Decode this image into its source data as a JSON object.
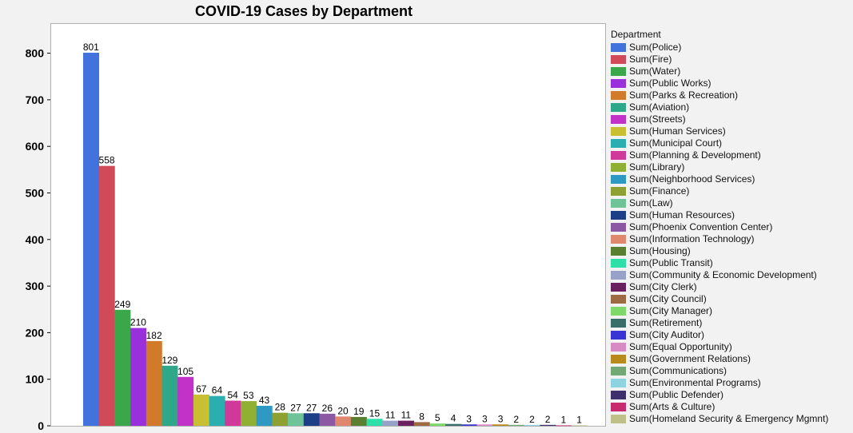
{
  "chart_data": {
    "type": "bar",
    "title": "COVID-19 Cases by Department",
    "xlabel": "",
    "ylabel": "",
    "ylim": [
      0,
      870
    ],
    "yticks": [
      0,
      100,
      200,
      300,
      400,
      500,
      600,
      700,
      800
    ],
    "legend_title": "Department",
    "legend_position": "right",
    "series": [
      {
        "name": "Sum(Police)",
        "value": 801,
        "color": "#4273dd"
      },
      {
        "name": "Sum(Fire)",
        "value": 558,
        "color": "#d04a5a"
      },
      {
        "name": "Sum(Water)",
        "value": 249,
        "color": "#3aa84a"
      },
      {
        "name": "Sum(Public Works)",
        "value": 210,
        "color": "#9a2fdc"
      },
      {
        "name": "Sum(Parks & Recreation)",
        "value": 182,
        "color": "#d17a2a"
      },
      {
        "name": "Sum(Aviation)",
        "value": 129,
        "color": "#2ea888"
      },
      {
        "name": "Sum(Streets)",
        "value": 105,
        "color": "#c232c8"
      },
      {
        "name": "Sum(Human Services)",
        "value": 67,
        "color": "#c8bf32"
      },
      {
        "name": "Sum(Municipal Court)",
        "value": 64,
        "color": "#2aaeb0"
      },
      {
        "name": "Sum(Planning & Development)",
        "value": 54,
        "color": "#d0389a"
      },
      {
        "name": "Sum(Library)",
        "value": 53,
        "color": "#8fb032"
      },
      {
        "name": "Sum(Neighborhood Services)",
        "value": 43,
        "color": "#2e9ac4"
      },
      {
        "name": "Sum(Finance)",
        "value": 28,
        "color": "#8ea032"
      },
      {
        "name": "Sum(Law)",
        "value": 27,
        "color": "#6fc497"
      },
      {
        "name": "Sum(Human Resources)",
        "value": 27,
        "color": "#1c3f87"
      },
      {
        "name": "Sum(Phoenix Convention Center)",
        "value": 26,
        "color": "#8c58a4"
      },
      {
        "name": "Sum(Information Technology)",
        "value": 20,
        "color": "#e0886e"
      },
      {
        "name": "Sum(Housing)",
        "value": 19,
        "color": "#5a7f30"
      },
      {
        "name": "Sum(Public Transit)",
        "value": 15,
        "color": "#2ee0a8"
      },
      {
        "name": "Sum(Community & Economic Development)",
        "value": 11,
        "color": "#98a2c8"
      },
      {
        "name": "Sum(City Clerk)",
        "value": 11,
        "color": "#6a1f5e"
      },
      {
        "name": "Sum(City Council)",
        "value": 8,
        "color": "#9e6a44"
      },
      {
        "name": "Sum(City Manager)",
        "value": 5,
        "color": "#7ed86a"
      },
      {
        "name": "Sum(Retirement)",
        "value": 4,
        "color": "#3a6e6a"
      },
      {
        "name": "Sum(City Auditor)",
        "value": 3,
        "color": "#3a34d4"
      },
      {
        "name": "Sum(Equal Opportunity)",
        "value": 3,
        "color": "#d88ac4"
      },
      {
        "name": "Sum(Government Relations)",
        "value": 3,
        "color": "#b88a1c"
      },
      {
        "name": "Sum(Communications)",
        "value": 2,
        "color": "#72a874"
      },
      {
        "name": "Sum(Environmental Programs)",
        "value": 2,
        "color": "#8ed4e0"
      },
      {
        "name": "Sum(Public Defender)",
        "value": 2,
        "color": "#3e2f6e"
      },
      {
        "name": "Sum(Arts & Culture)",
        "value": 1,
        "color": "#c82a6e"
      },
      {
        "name": "Sum(Homeland Security & Emergency Mgmnt)",
        "value": 1,
        "color": "#bfbf8a"
      }
    ]
  }
}
